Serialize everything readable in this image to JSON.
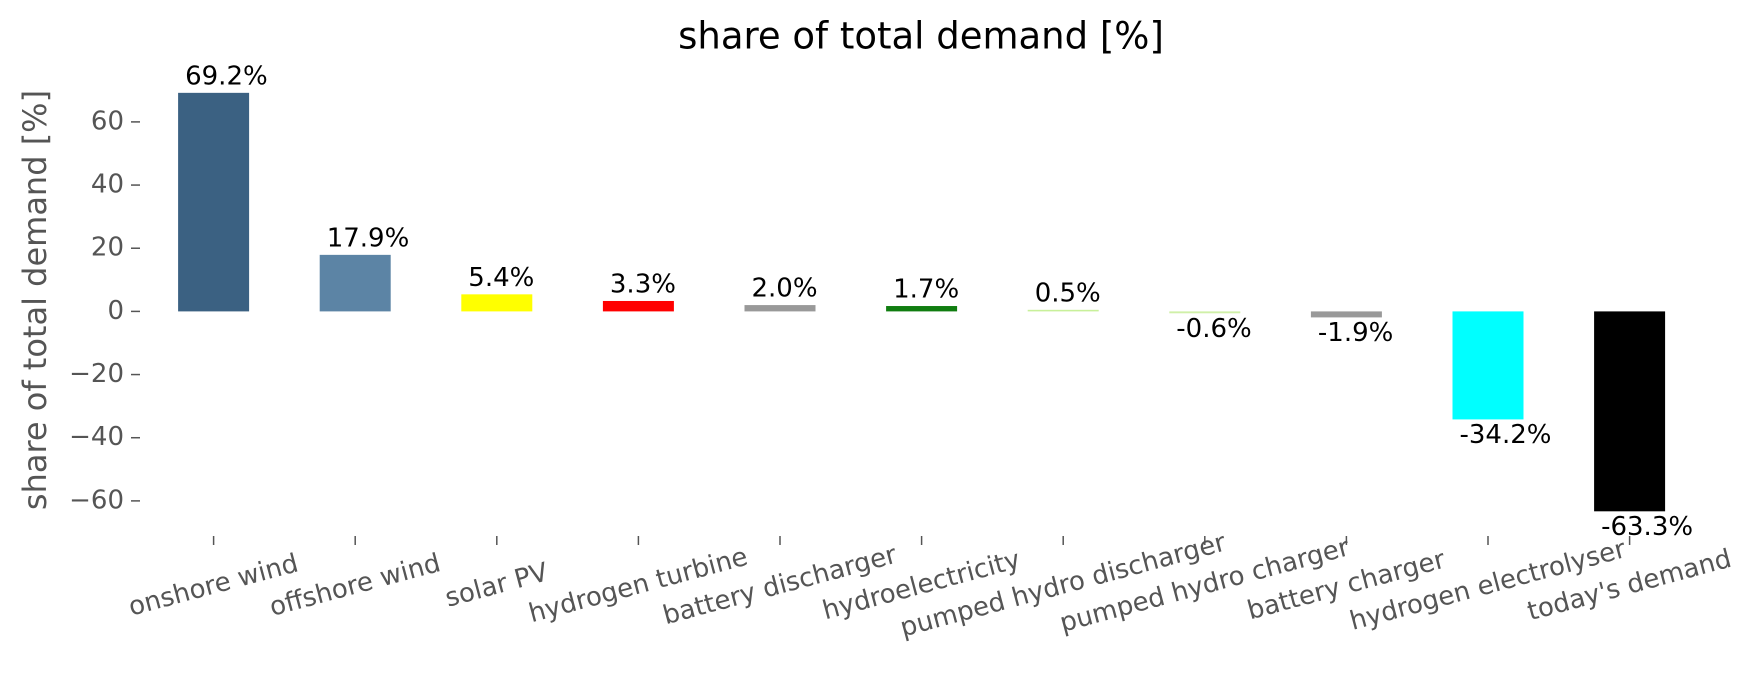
{
  "chart_data": {
    "type": "bar",
    "title": "share of total demand [%]",
    "y_label": "share of total demand [%]",
    "categories": [
      "onshore wind",
      "offshore wind",
      "solar PV",
      "hydrogen turbine",
      "battery discharger",
      "hydroelectricity",
      "pumped hydro discharger",
      "pumped hydro charger",
      "battery charger",
      "hydrogen electrolyser",
      "today's demand"
    ],
    "values": [
      69.2,
      17.9,
      5.4,
      3.3,
      2.0,
      1.7,
      0.5,
      -0.6,
      -1.9,
      -34.2,
      -63.3
    ],
    "value_labels": [
      "69.2%",
      "17.9%",
      "5.4%",
      "3.3%",
      "2.0%",
      "1.7%",
      "0.5%",
      "-0.6%",
      "-1.9%",
      "-34.2%",
      "-63.3%"
    ],
    "colors": [
      "#3b6182",
      "#5c84a5",
      "#ffff00",
      "#ff0000",
      "#999999",
      "#107d10",
      "#c8f09a",
      "#d0f0a8",
      "#999999",
      "#00ffff",
      "#000000"
    ],
    "ylim": [
      -67,
      72
    ],
    "yticks": [
      {
        "value": -60,
        "label": "−60"
      },
      {
        "value": -40,
        "label": "−40"
      },
      {
        "value": -20,
        "label": "−20"
      },
      0,
      20,
      40,
      60
    ]
  }
}
